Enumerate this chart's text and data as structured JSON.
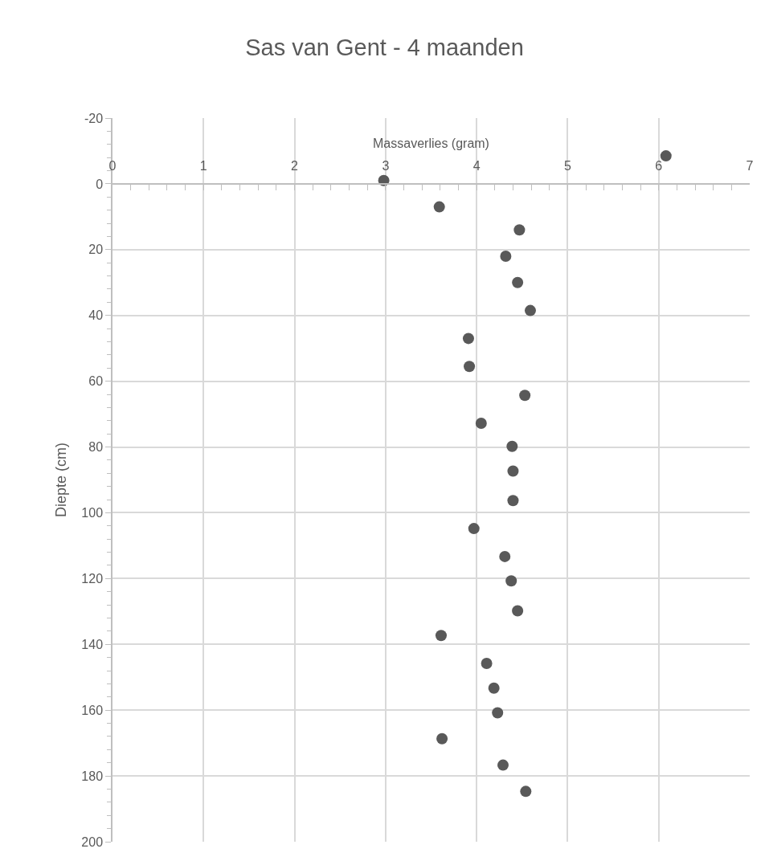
{
  "chart_data": {
    "type": "scatter",
    "title": "Sas van Gent - 4 maanden",
    "xlabel": "Massaverlies (gram)",
    "ylabel": "Diepte (cm)",
    "series": [
      {
        "color": "#595959",
        "x": [
          6.08,
          2.98,
          3.59,
          4.47,
          4.32,
          4.45,
          4.59,
          3.91,
          3.92,
          4.53,
          4.05,
          4.39,
          4.4,
          4.4,
          3.97,
          4.31,
          4.38,
          4.45,
          3.61,
          4.11,
          4.19,
          4.23,
          3.62,
          4.29,
          4.54
        ],
        "values": [
          -8.5,
          -1,
          7,
          14,
          22,
          30,
          38.5,
          47,
          55.5,
          64.3,
          72.8,
          79.8,
          87.3,
          96.3,
          104.8,
          113.3,
          120.7,
          129.8,
          137.3,
          145.8,
          153.3,
          160.8,
          168.7,
          176.7,
          184.7
        ]
      }
    ],
    "xlim": [
      0,
      7
    ],
    "xticks": [
      0,
      1,
      2,
      3,
      4,
      5,
      6,
      7
    ],
    "ylim": [
      200,
      -20
    ],
    "yticks": [
      -20,
      0,
      20,
      40,
      60,
      80,
      100,
      120,
      140,
      160,
      180,
      200
    ],
    "grid": true,
    "marker": "circle"
  }
}
